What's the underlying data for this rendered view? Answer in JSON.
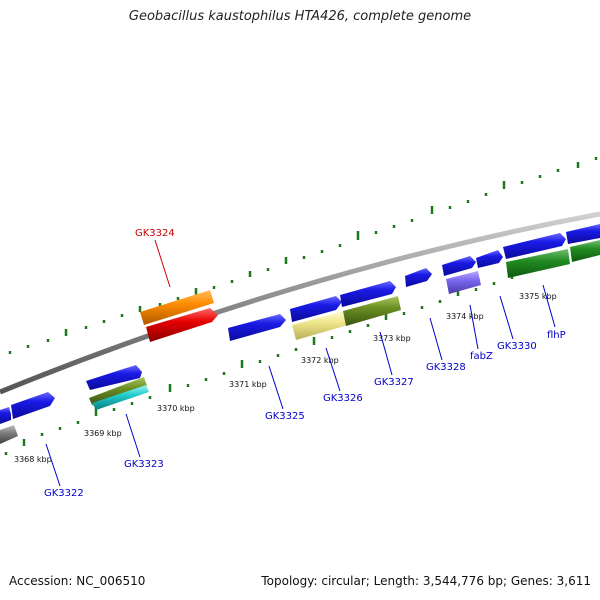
{
  "title": "Geobacillus kaustophilus HTA426, complete genome",
  "footer": {
    "accession": "Accession: NC_006510",
    "topology": "Topology: circular; Length: 3,544,776 bp; Genes: 3,611"
  },
  "colors": {
    "backbone": "#8a8a8a",
    "gene_blue": "#1a1ae6",
    "gene_red": "#e60000",
    "gene_orange": "#ff8c00",
    "gene_olive": "#6b8e23",
    "gene_cyan": "#22cccc",
    "gene_khaki": "#f0e68c",
    "gene_slate": "#7b68ee",
    "gene_green": "#228b22",
    "gene_gray": "#808080",
    "label_blue": "#0000cc",
    "label_red": "#cc0000",
    "tick_green": "#1a7a1a"
  },
  "scale_labels": [
    "3368 kbp",
    "3369 kbp",
    "3370 kbp",
    "3371 kbp",
    "3372 kbp",
    "3373 kbp",
    "3374 kbp",
    "3375 kbp"
  ],
  "gene_labels": [
    "GK3322",
    "GK3323",
    "GK3324",
    "GK3325",
    "GK3326",
    "GK3327",
    "GK3328",
    "fabZ",
    "GK3330",
    "flhP"
  ]
}
